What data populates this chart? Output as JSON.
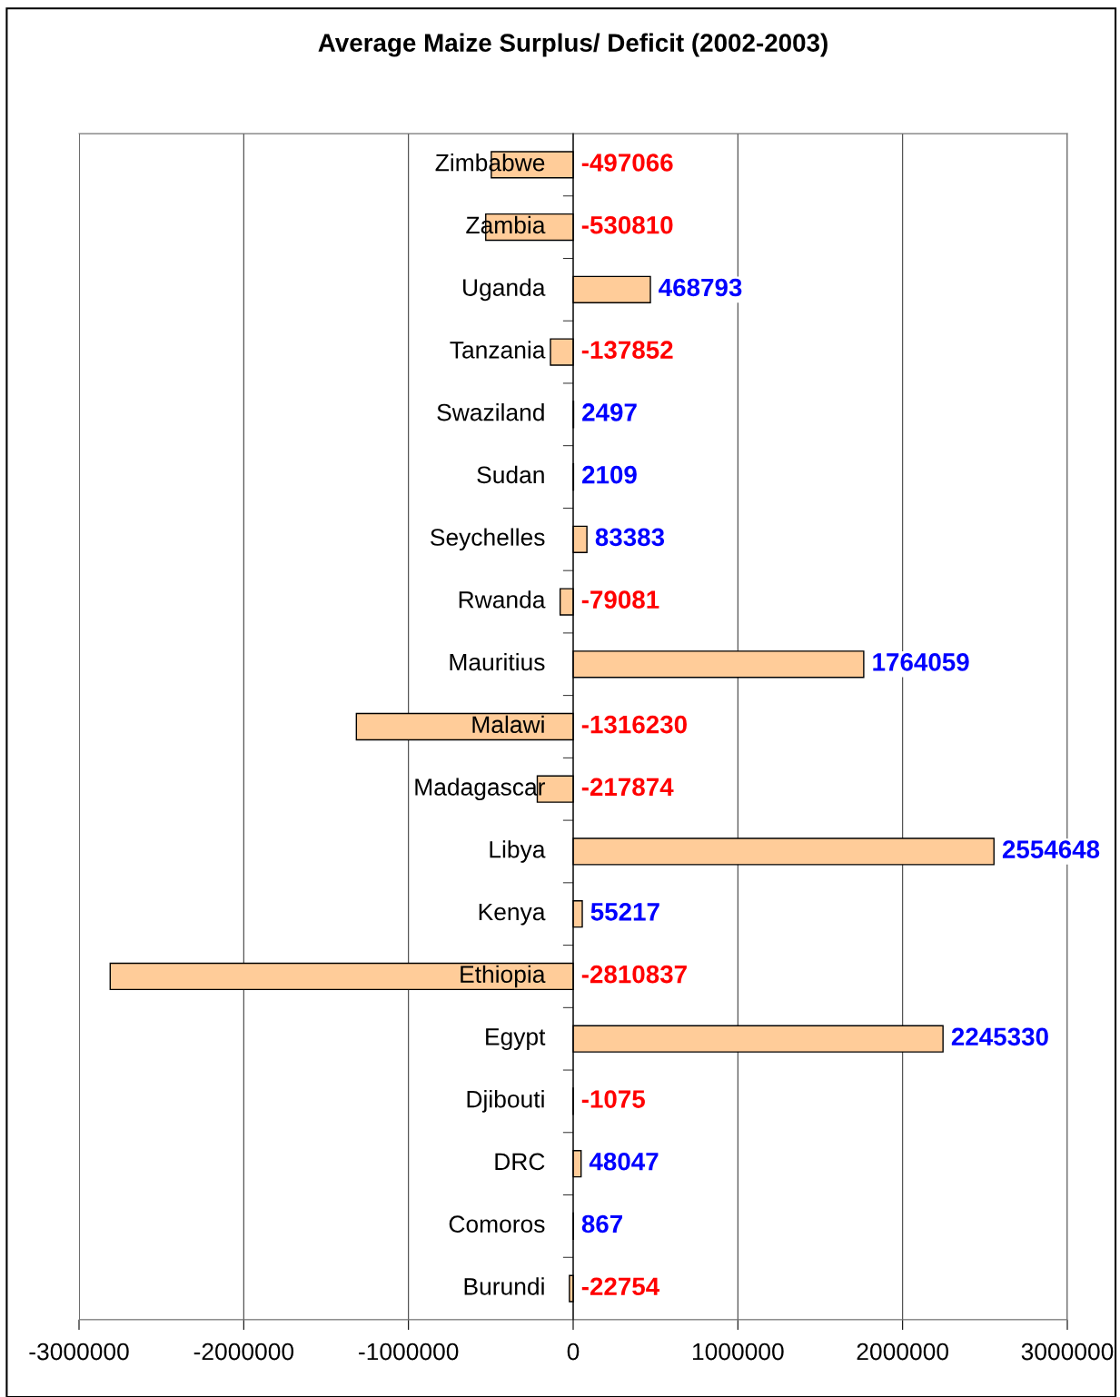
{
  "chart_data": {
    "type": "bar",
    "orientation": "horizontal",
    "title": "Average Maize Surplus/ Deficit (2002-2003)",
    "categories": [
      "Zimbabwe",
      "Zambia",
      "Uganda",
      "Tanzania",
      "Swaziland",
      "Sudan",
      "Seychelles",
      "Rwanda",
      "Mauritius",
      "Malawi",
      "Madagascar",
      "Libya",
      "Kenya",
      "Ethiopia",
      "Egypt",
      "Djibouti",
      "DRC",
      "Comoros",
      "Burundi"
    ],
    "values": [
      -497066,
      -530810,
      468793,
      -137852,
      2497,
      2109,
      83383,
      -79081,
      1764059,
      -1316230,
      -217874,
      2554648,
      55217,
      -2810837,
      2245330,
      -1075,
      48047,
      867,
      -22754
    ],
    "color": "#ffcc99",
    "xlim": [
      -3000000,
      3000000
    ],
    "xticks": [
      -3000000,
      -2000000,
      -1000000,
      0,
      1000000,
      2000000,
      3000000
    ],
    "grid": "x",
    "data_labels": true
  }
}
